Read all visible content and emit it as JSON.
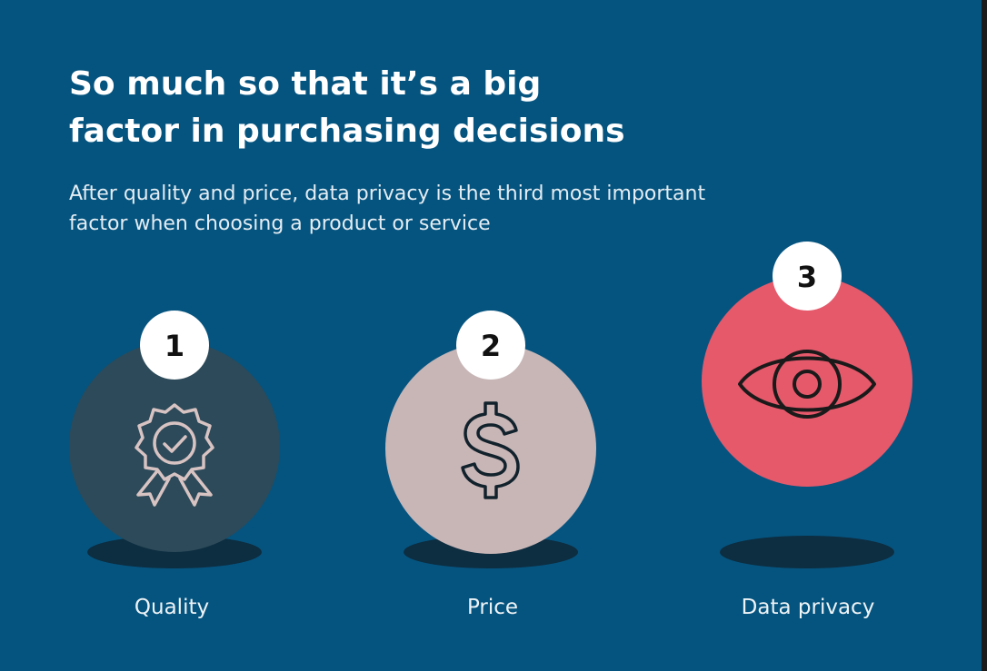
{
  "header": {
    "title_lines": [
      "So much so that it’s a big",
      "factor in purchasing decisions"
    ],
    "subtitle_lines": [
      "After quality and price, data privacy is the third most important",
      "factor when choosing a product or service"
    ]
  },
  "items": [
    {
      "rank": 1,
      "label": "Quality"
    },
    {
      "rank": 2,
      "label": "Price"
    },
    {
      "rank": 3,
      "label": "Data privacy"
    }
  ]
}
